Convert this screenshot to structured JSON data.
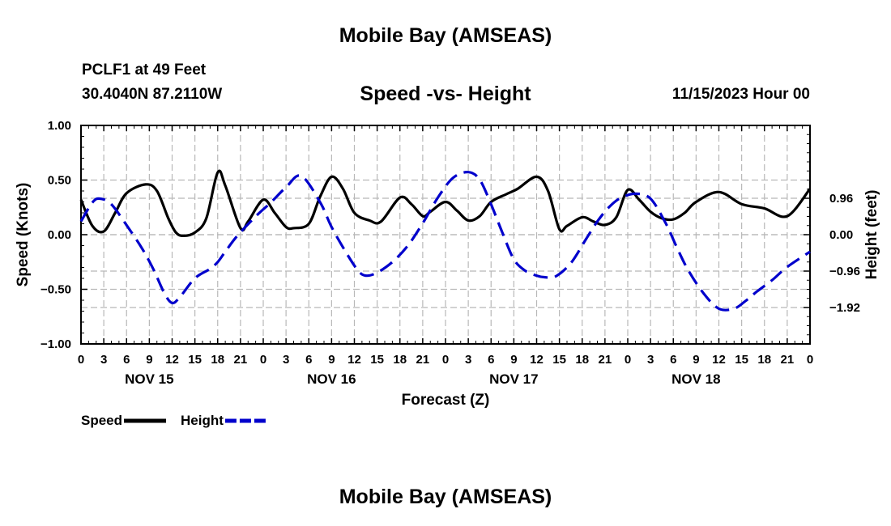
{
  "page": {
    "title": "Mobile Bay (AMSEAS)",
    "station": "PCLF1 at 49 Feet",
    "coordinates": "30.4040N  87.2110W",
    "run_time": "11/15/2023 Hour 00",
    "footer_title": "Mobile Bay (AMSEAS)"
  },
  "chart_data": {
    "type": "line",
    "title": "Speed -vs- Height",
    "xlabel": "Forecast (Z)",
    "ylabel_left": "Speed (Knots)",
    "ylabel_right": "Height (feet)",
    "xlim": [
      0,
      96
    ],
    "ylim_left": [
      -1.0,
      1.0
    ],
    "ylim_right": [
      -2.88,
      2.88
    ],
    "grid": true,
    "x_ticks": [
      0,
      3,
      6,
      9,
      12,
      15,
      18,
      21,
      24,
      27,
      30,
      33,
      36,
      39,
      42,
      45,
      48,
      51,
      54,
      57,
      60,
      63,
      66,
      69,
      72,
      75,
      78,
      81,
      84,
      87,
      90,
      93,
      96
    ],
    "x_tick_labels": [
      "0",
      "3",
      "6",
      "9",
      "12",
      "15",
      "18",
      "21",
      "0",
      "3",
      "6",
      "9",
      "12",
      "15",
      "18",
      "21",
      "0",
      "3",
      "6",
      "9",
      "12",
      "15",
      "18",
      "21",
      "0",
      "3",
      "6",
      "9",
      "12",
      "15",
      "18",
      "21",
      "0"
    ],
    "date_labels": [
      {
        "x": 9,
        "label": "NOV 15"
      },
      {
        "x": 33,
        "label": "NOV 16"
      },
      {
        "x": 57,
        "label": "NOV 17"
      },
      {
        "x": 81,
        "label": "NOV 18"
      }
    ],
    "left_ticks": [
      {
        "value": 1.0,
        "label": "1.00"
      },
      {
        "value": 0.5,
        "label": "0.50"
      },
      {
        "value": 0.0,
        "label": "0.00"
      },
      {
        "value": -0.5,
        "label": "−0.50"
      },
      {
        "value": -1.0,
        "label": "−1.00"
      }
    ],
    "right_ticks": [
      {
        "value": 0.96,
        "label": "0.96"
      },
      {
        "value": 0.0,
        "label": "0.00"
      },
      {
        "value": -0.96,
        "label": "−0.96"
      },
      {
        "value": -1.92,
        "label": "−1.92"
      }
    ],
    "legend": [
      {
        "name": "Speed",
        "color": "#000000",
        "style": "solid"
      },
      {
        "name": "Height",
        "color": "#0000cc",
        "style": "dashed"
      }
    ],
    "series": [
      {
        "name": "Speed",
        "axis": "left",
        "color": "#000000",
        "x": [
          0,
          1.5,
          3,
          4.5,
          6,
          8.5,
          10,
          11.5,
          12.5,
          13.5,
          15,
          16.5,
          18,
          19,
          21,
          22,
          24,
          25.5,
          27,
          28,
          30,
          31.5,
          33,
          34.5,
          36,
          38,
          39.5,
          42,
          43.5,
          45,
          46,
          48,
          49.5,
          51,
          52.5,
          54,
          56,
          57.5,
          60,
          61.5,
          63,
          64,
          66,
          67.5,
          69,
          70.5,
          72,
          73.5,
          75,
          76.5,
          78,
          79.5,
          81,
          84,
          87,
          90,
          93,
          96
        ],
        "values": [
          0.32,
          0.08,
          0.03,
          0.2,
          0.38,
          0.46,
          0.4,
          0.15,
          0.02,
          -0.01,
          0.02,
          0.15,
          0.57,
          0.45,
          0.06,
          0.12,
          0.32,
          0.2,
          0.07,
          0.06,
          0.1,
          0.35,
          0.53,
          0.42,
          0.2,
          0.13,
          0.12,
          0.34,
          0.28,
          0.17,
          0.21,
          0.3,
          0.22,
          0.13,
          0.17,
          0.3,
          0.37,
          0.42,
          0.53,
          0.4,
          0.05,
          0.08,
          0.16,
          0.12,
          0.09,
          0.16,
          0.41,
          0.32,
          0.21,
          0.15,
          0.14,
          0.2,
          0.3,
          0.39,
          0.28,
          0.24,
          0.17,
          0.42
        ]
      },
      {
        "name": "Height",
        "axis": "right",
        "color": "#0000cc",
        "x": [
          0,
          1.5,
          2.5,
          4,
          6,
          8,
          9.5,
          11,
          12,
          13,
          15,
          17,
          18,
          19,
          20.5,
          23,
          25,
          27,
          29,
          31.5,
          33,
          35,
          36.5,
          37.5,
          39,
          41,
          43,
          45,
          47,
          49,
          51,
          52.5,
          54,
          55.5,
          57,
          58.5,
          60,
          61,
          62.5,
          64.5,
          66.5,
          68,
          69.5,
          71,
          73,
          75,
          77,
          78.5,
          80,
          82,
          84,
          86,
          87.5,
          89,
          91,
          93,
          96
        ],
        "values": [
          0.35,
          0.85,
          0.95,
          0.8,
          0.25,
          -0.35,
          -0.9,
          -1.55,
          -1.8,
          -1.65,
          -1.15,
          -0.9,
          -0.72,
          -0.45,
          -0.05,
          0.48,
          0.85,
          1.25,
          1.55,
          0.85,
          0.2,
          -0.5,
          -0.95,
          -1.08,
          -1.0,
          -0.72,
          -0.3,
          0.3,
          0.98,
          1.5,
          1.65,
          1.45,
          0.8,
          0.05,
          -0.65,
          -0.95,
          -1.08,
          -1.12,
          -1.1,
          -0.75,
          -0.12,
          0.35,
          0.72,
          0.96,
          1.08,
          0.95,
          0.3,
          -0.35,
          -0.95,
          -1.55,
          -1.95,
          -1.95,
          -1.75,
          -1.5,
          -1.2,
          -0.85,
          -0.45
        ]
      }
    ]
  }
}
